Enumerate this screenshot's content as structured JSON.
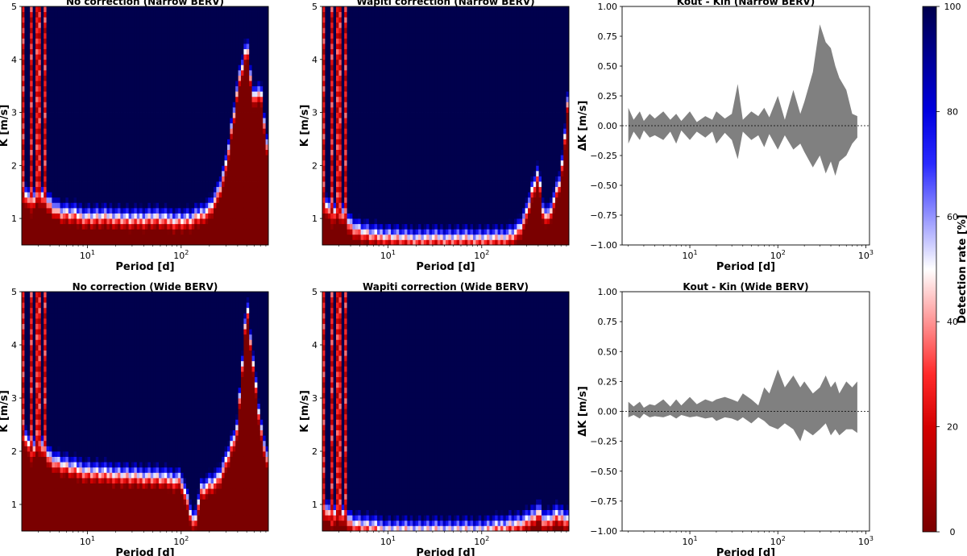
{
  "chart_data": [
    {
      "type": "heatmap",
      "title": "No correction (Narrow BERV)",
      "xlabel": "Period [d]",
      "ylabel": "K [m/s]",
      "xscale": "log",
      "xlim": [
        2,
        850
      ],
      "ylim": [
        0.5,
        5
      ],
      "xticks": [
        {
          "base": "10",
          "exp": "1",
          "value": 10
        },
        {
          "base": "10",
          "exp": "2",
          "value": 100
        }
      ],
      "yticks": [
        "1",
        "2",
        "3",
        "4",
        "5"
      ],
      "description_threshold": {
        "period": [
          2,
          2.5,
          3,
          4,
          5,
          7,
          10,
          15,
          20,
          30,
          50,
          70,
          100,
          130,
          160,
          200,
          250,
          300,
          350,
          400,
          500,
          600,
          700,
          850
        ],
        "k": [
          1.6,
          1.3,
          1.5,
          1.3,
          1.15,
          1.1,
          1.05,
          1.05,
          1.05,
          1.0,
          1.05,
          1.0,
          1.0,
          1.0,
          1.1,
          1.2,
          1.5,
          2.0,
          2.8,
          3.5,
          4.3,
          3.2,
          3.5,
          2.2
        ]
      },
      "vertical_stripes": [
        2.1,
        2.5,
        3.0,
        3.6
      ]
    },
    {
      "type": "heatmap",
      "title": "Wapiti correction (Narrow BERV)",
      "xlabel": "Period [d]",
      "ylabel": "K [m/s]",
      "xscale": "log",
      "xlim": [
        2,
        850
      ],
      "ylim": [
        0.5,
        5
      ],
      "xticks": [
        {
          "base": "10",
          "exp": "1",
          "value": 10
        },
        {
          "base": "10",
          "exp": "2",
          "value": 100
        }
      ],
      "yticks": [
        "1",
        "2",
        "3",
        "4",
        "5"
      ],
      "description_threshold": {
        "period": [
          2,
          2.5,
          3,
          4,
          5,
          7,
          10,
          15,
          20,
          30,
          50,
          70,
          100,
          150,
          200,
          250,
          300,
          350,
          400,
          450,
          500,
          600,
          700,
          850
        ],
        "k": [
          1.4,
          1.1,
          1.2,
          0.9,
          0.8,
          0.7,
          0.7,
          0.65,
          0.65,
          0.65,
          0.65,
          0.65,
          0.65,
          0.65,
          0.7,
          0.8,
          1.1,
          1.6,
          1.9,
          1.2,
          1.0,
          1.4,
          1.8,
          3.5
        ]
      },
      "vertical_stripes": [
        2.1,
        2.5,
        3.0,
        3.6
      ]
    },
    {
      "type": "area",
      "title": "Kout - Kin (Narrow BERV)",
      "xlabel": "Period [d]",
      "ylabel": "ΔK [m/s]",
      "xscale": "log",
      "xlim": [
        1.7,
        1100
      ],
      "ylim": [
        -1.0,
        1.0
      ],
      "xticks": [
        {
          "base": "10",
          "exp": "1",
          "value": 10
        },
        {
          "base": "10",
          "exp": "2",
          "value": 100
        },
        {
          "base": "10",
          "exp": "3",
          "value": 1000
        }
      ],
      "yticks": [
        "1.00",
        "0.75",
        "0.50",
        "0.25",
        "0.00",
        "−0.25",
        "−0.50",
        "−0.75",
        "−1.00"
      ],
      "x": [
        2,
        2.3,
        2.7,
        3,
        3.5,
        4,
        5,
        6,
        7,
        8,
        10,
        12,
        15,
        18,
        20,
        25,
        30,
        35,
        40,
        50,
        60,
        70,
        80,
        100,
        120,
        150,
        180,
        200,
        250,
        300,
        350,
        400,
        450,
        500,
        600,
        700,
        800
      ],
      "upper": [
        0.15,
        0.05,
        0.12,
        0.04,
        0.1,
        0.06,
        0.12,
        0.05,
        0.1,
        0.04,
        0.12,
        0.03,
        0.08,
        0.05,
        0.12,
        0.06,
        0.1,
        0.35,
        0.05,
        0.12,
        0.08,
        0.15,
        0.07,
        0.25,
        0.05,
        0.3,
        0.1,
        0.2,
        0.45,
        0.85,
        0.7,
        0.65,
        0.5,
        0.4,
        0.3,
        0.1,
        0.08
      ],
      "lower": [
        -0.15,
        -0.05,
        -0.12,
        -0.04,
        -0.1,
        -0.08,
        -0.12,
        -0.05,
        -0.15,
        -0.04,
        -0.12,
        -0.05,
        -0.1,
        -0.05,
        -0.15,
        -0.06,
        -0.12,
        -0.28,
        -0.05,
        -0.12,
        -0.08,
        -0.18,
        -0.07,
        -0.2,
        -0.08,
        -0.2,
        -0.15,
        -0.22,
        -0.35,
        -0.25,
        -0.4,
        -0.3,
        -0.42,
        -0.3,
        -0.25,
        -0.15,
        -0.1
      ],
      "zero_line": 0
    },
    {
      "type": "heatmap",
      "title": "No correction (Wide BERV)",
      "xlabel": "Period [d]",
      "ylabel": "K [m/s]",
      "xscale": "log",
      "xlim": [
        2,
        850
      ],
      "ylim": [
        0.5,
        5
      ],
      "xticks": [
        {
          "base": "10",
          "exp": "1",
          "value": 10
        },
        {
          "base": "10",
          "exp": "2",
          "value": 100
        }
      ],
      "yticks": [
        "1",
        "2",
        "3",
        "4",
        "5"
      ],
      "description_threshold": {
        "period": [
          2,
          2.5,
          3,
          4,
          5,
          7,
          10,
          15,
          20,
          30,
          50,
          70,
          100,
          120,
          140,
          160,
          200,
          250,
          300,
          400,
          500,
          600,
          700,
          850
        ],
        "k": [
          2.5,
          2.0,
          2.2,
          1.9,
          1.8,
          1.7,
          1.65,
          1.6,
          1.6,
          1.55,
          1.55,
          1.5,
          1.5,
          1.0,
          0.6,
          1.3,
          1.4,
          1.5,
          1.8,
          2.5,
          4.8,
          3.5,
          2.5,
          1.8
        ]
      },
      "vertical_stripes": [
        2.1,
        2.5,
        3.0,
        3.6
      ]
    },
    {
      "type": "heatmap",
      "title": "Wapiti correction (Wide BERV)",
      "xlabel": "Period [d]",
      "ylabel": "K [m/s]",
      "xscale": "log",
      "xlim": [
        2,
        850
      ],
      "ylim": [
        0.5,
        5
      ],
      "xticks": [
        {
          "base": "10",
          "exp": "1",
          "value": 10
        },
        {
          "base": "10",
          "exp": "2",
          "value": 100
        }
      ],
      "yticks": [
        "1",
        "2",
        "3",
        "4",
        "5"
      ],
      "description_threshold": {
        "period": [
          2,
          2.5,
          3,
          4,
          5,
          7,
          10,
          15,
          20,
          30,
          50,
          70,
          100,
          150,
          200,
          250,
          300,
          350,
          400,
          450,
          500,
          600,
          700,
          850
        ],
        "k": [
          1.0,
          0.8,
          0.9,
          0.7,
          0.65,
          0.6,
          0.55,
          0.55,
          0.55,
          0.55,
          0.55,
          0.55,
          0.55,
          0.6,
          0.65,
          0.65,
          0.7,
          0.8,
          0.9,
          0.75,
          0.7,
          0.8,
          0.8,
          0.75
        ]
      },
      "vertical_stripes": [
        2.1,
        2.5,
        3.0,
        3.6
      ]
    },
    {
      "type": "area",
      "title": "Kout - Kin (Wide BERV)",
      "xlabel": "Period [d]",
      "ylabel": "ΔK [m/s]",
      "xscale": "log",
      "xlim": [
        1.7,
        1100
      ],
      "ylim": [
        -1.0,
        1.0
      ],
      "xticks": [
        {
          "base": "10",
          "exp": "1",
          "value": 10
        },
        {
          "base": "10",
          "exp": "2",
          "value": 100
        },
        {
          "base": "10",
          "exp": "3",
          "value": 1000
        }
      ],
      "yticks": [
        "1.00",
        "0.75",
        "0.50",
        "0.25",
        "0.00",
        "−0.25",
        "−0.50",
        "−0.75",
        "−1.00"
      ],
      "x": [
        2,
        2.3,
        2.7,
        3,
        3.5,
        4,
        5,
        6,
        7,
        8,
        10,
        12,
        15,
        18,
        20,
        25,
        30,
        35,
        40,
        50,
        60,
        70,
        80,
        100,
        120,
        150,
        180,
        200,
        250,
        300,
        350,
        400,
        450,
        500,
        600,
        700,
        800
      ],
      "upper": [
        0.08,
        0.04,
        0.08,
        0.03,
        0.06,
        0.05,
        0.1,
        0.04,
        0.1,
        0.05,
        0.12,
        0.06,
        0.1,
        0.08,
        0.1,
        0.12,
        0.1,
        0.08,
        0.15,
        0.1,
        0.05,
        0.2,
        0.15,
        0.35,
        0.2,
        0.3,
        0.2,
        0.25,
        0.15,
        0.2,
        0.3,
        0.2,
        0.25,
        0.15,
        0.25,
        0.2,
        0.25
      ],
      "lower": [
        -0.05,
        -0.03,
        -0.06,
        -0.02,
        -0.05,
        -0.04,
        -0.05,
        -0.03,
        -0.06,
        -0.03,
        -0.05,
        -0.04,
        -0.06,
        -0.05,
        -0.08,
        -0.05,
        -0.06,
        -0.08,
        -0.05,
        -0.1,
        -0.05,
        -0.08,
        -0.12,
        -0.15,
        -0.1,
        -0.15,
        -0.25,
        -0.15,
        -0.2,
        -0.15,
        -0.1,
        -0.2,
        -0.15,
        -0.2,
        -0.15,
        -0.15,
        -0.18
      ],
      "zero_line": 0
    }
  ],
  "colorbar": {
    "label": "Detection rate [%]",
    "ticks": [
      "0",
      "20",
      "40",
      "60",
      "80",
      "100"
    ],
    "colors": {
      "low": "#7a0000",
      "mid_low": "#ff0000",
      "mid": "#ffffff",
      "mid_high": "#0000ff",
      "high": "#00004d"
    }
  }
}
